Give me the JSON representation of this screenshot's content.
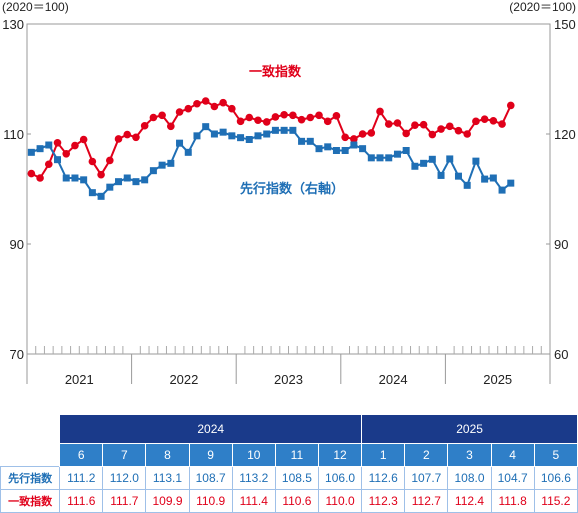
{
  "chart_data": {
    "type": "line",
    "left_axis": {
      "unit": "(2020＝100)",
      "ylim": [
        70,
        130
      ],
      "ticks": [
        70,
        90,
        110,
        130
      ]
    },
    "right_axis": {
      "unit": "(2020＝100)",
      "ylim": [
        60,
        150
      ],
      "ticks": [
        60,
        90,
        120,
        150
      ]
    },
    "years": [
      "2021",
      "2022",
      "2023",
      "2024",
      "2025"
    ],
    "x_start": "2021-01",
    "series": [
      {
        "name": "一致指数",
        "axis": "left",
        "color": "#e0001a",
        "marker": "circle",
        "values": [
          102.8,
          102.0,
          104.5,
          108.4,
          106.4,
          107.9,
          109.0,
          105.0,
          102.6,
          105.2,
          109.1,
          109.9,
          109.4,
          111.5,
          113.0,
          113.4,
          111.4,
          114.0,
          114.6,
          115.5,
          116.0,
          115.0,
          115.7,
          114.6,
          112.3,
          113.0,
          112.5,
          112.2,
          113.1,
          113.5,
          113.4,
          112.6,
          113.0,
          113.4,
          112.3,
          113.3,
          109.4,
          109.1,
          110.0,
          110.2,
          114.1,
          111.8,
          112.0,
          110.1,
          111.6,
          111.7,
          109.9,
          110.9,
          111.4,
          110.6,
          110.0,
          112.3,
          112.7,
          112.4,
          111.8,
          115.2
        ]
      },
      {
        "name": "先行指数（右軸）",
        "axis": "right",
        "color": "#1f6fb5",
        "marker": "square",
        "values": [
          115.0,
          116.0,
          117.0,
          113.0,
          108.0,
          108.0,
          107.5,
          104.0,
          103.0,
          105.5,
          107.0,
          108.0,
          107.0,
          107.5,
          110.0,
          111.5,
          112.0,
          117.5,
          115.0,
          119.5,
          122.0,
          120.0,
          120.5,
          119.5,
          119.0,
          118.5,
          119.5,
          120.0,
          121.0,
          121.0,
          121.0,
          118.0,
          118.0,
          116.0,
          116.5,
          115.5,
          115.5,
          117.0,
          116.0,
          113.5,
          113.5,
          113.5,
          114.5,
          115.5,
          111.2,
          112.0,
          113.1,
          108.7,
          113.2,
          108.5,
          106.0,
          112.6,
          107.7,
          108.0,
          104.7,
          106.6
        ]
      }
    ],
    "labels": {
      "coincident": "一致指数",
      "leading": "先行指数（右軸）"
    }
  },
  "table": {
    "years": [
      {
        "label": "2024",
        "span": 7
      },
      {
        "label": "2025",
        "span": 5
      }
    ],
    "months": [
      "6",
      "7",
      "8",
      "9",
      "10",
      "11",
      "12",
      "1",
      "2",
      "3",
      "4",
      "5"
    ],
    "rows": [
      {
        "label": "先行指数",
        "color": "blue",
        "values": [
          "111.2",
          "112.0",
          "113.1",
          "108.7",
          "113.2",
          "108.5",
          "106.0",
          "112.6",
          "107.7",
          "108.0",
          "104.7",
          "106.6"
        ]
      },
      {
        "label": "一致指数",
        "color": "red",
        "values": [
          "111.6",
          "111.7",
          "109.9",
          "110.9",
          "111.4",
          "110.6",
          "110.0",
          "112.3",
          "112.7",
          "112.4",
          "111.8",
          "115.2"
        ]
      }
    ]
  }
}
